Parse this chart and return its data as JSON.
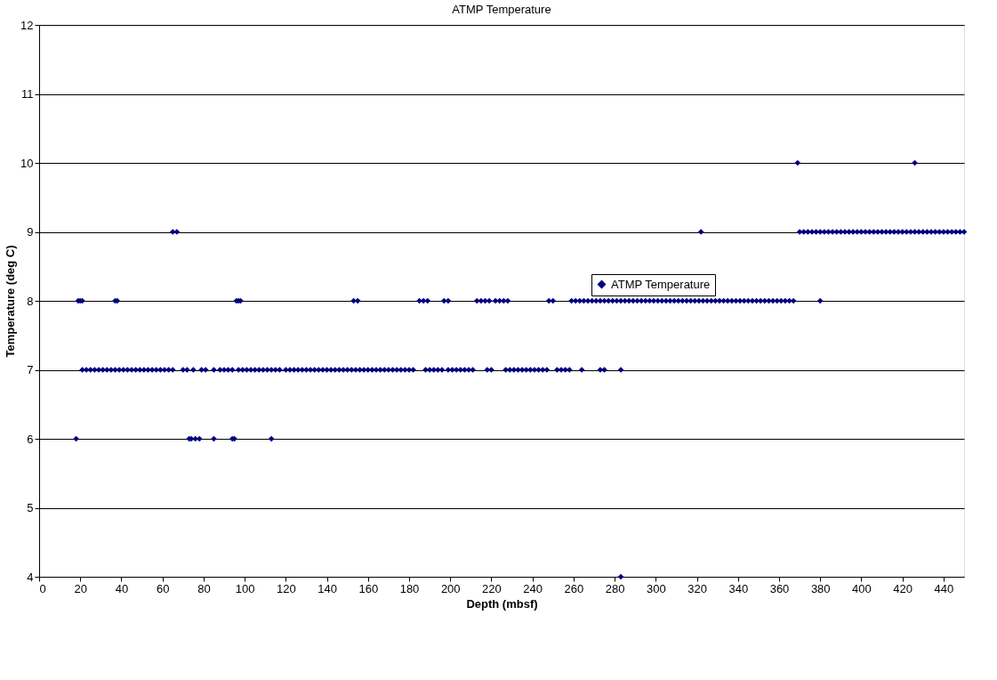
{
  "chart_data": {
    "type": "scatter",
    "title": "ATMP Temperature",
    "xlabel": "Depth (mbsf)",
    "ylabel": "Temperature (deg C)",
    "xlim": [
      0,
      450
    ],
    "xticks": [
      0,
      20,
      40,
      60,
      80,
      100,
      120,
      140,
      160,
      180,
      200,
      220,
      240,
      260,
      280,
      300,
      320,
      340,
      360,
      380,
      400,
      420,
      440
    ],
    "ylim": [
      4,
      12
    ],
    "yticks": [
      4,
      5,
      6,
      7,
      8,
      9,
      10,
      11,
      12
    ],
    "grid": "y",
    "legend": "top right",
    "marker": "diamond",
    "series": [
      {
        "name": "ATMP Temperature",
        "color": "#000080",
        "x": [
          18,
          73,
          74,
          76,
          78,
          85,
          94,
          95,
          113,
          283,
          21,
          23,
          25,
          27,
          29,
          31,
          33,
          35,
          37,
          39,
          41,
          43,
          45,
          47,
          49,
          51,
          53,
          55,
          57,
          59,
          61,
          63,
          65,
          70,
          72,
          75,
          79,
          81,
          85,
          88,
          90,
          92,
          94,
          97,
          99,
          101,
          103,
          105,
          107,
          109,
          111,
          113,
          115,
          117,
          120,
          122,
          124,
          126,
          128,
          130,
          132,
          134,
          136,
          138,
          140,
          142,
          144,
          146,
          148,
          150,
          152,
          154,
          156,
          158,
          160,
          162,
          164,
          166,
          168,
          170,
          172,
          174,
          176,
          178,
          180,
          182,
          188,
          190,
          192,
          194,
          196,
          199,
          201,
          203,
          205,
          207,
          209,
          211,
          218,
          220,
          227,
          229,
          231,
          233,
          235,
          237,
          239,
          241,
          243,
          245,
          247,
          252,
          254,
          256,
          258,
          264,
          273,
          275,
          283,
          19,
          20,
          21,
          37,
          38,
          96,
          97,
          98,
          153,
          155,
          185,
          187,
          189,
          197,
          199,
          213,
          215,
          217,
          219,
          222,
          224,
          226,
          228,
          248,
          250,
          259,
          261,
          263,
          265,
          267,
          269,
          271,
          273,
          275,
          277,
          279,
          281,
          283,
          285,
          287,
          289,
          291,
          293,
          295,
          297,
          299,
          301,
          303,
          305,
          307,
          309,
          311,
          313,
          315,
          317,
          319,
          321,
          323,
          325,
          327,
          329,
          331,
          333,
          335,
          337,
          339,
          341,
          343,
          345,
          347,
          349,
          351,
          353,
          355,
          357,
          359,
          361,
          363,
          365,
          367,
          380,
          65,
          67,
          322,
          370,
          372,
          374,
          376,
          378,
          380,
          382,
          384,
          386,
          388,
          390,
          392,
          394,
          396,
          398,
          400,
          402,
          404,
          406,
          408,
          410,
          412,
          414,
          416,
          418,
          420,
          422,
          424,
          426,
          428,
          430,
          432,
          434,
          436,
          438,
          440,
          442,
          444,
          446,
          448,
          450,
          369,
          426
        ],
        "values": [
          6,
          6,
          6,
          6,
          6,
          6,
          6,
          6,
          6,
          4,
          7,
          7,
          7,
          7,
          7,
          7,
          7,
          7,
          7,
          7,
          7,
          7,
          7,
          7,
          7,
          7,
          7,
          7,
          7,
          7,
          7,
          7,
          7,
          7,
          7,
          7,
          7,
          7,
          7,
          7,
          7,
          7,
          7,
          7,
          7,
          7,
          7,
          7,
          7,
          7,
          7,
          7,
          7,
          7,
          7,
          7,
          7,
          7,
          7,
          7,
          7,
          7,
          7,
          7,
          7,
          7,
          7,
          7,
          7,
          7,
          7,
          7,
          7,
          7,
          7,
          7,
          7,
          7,
          7,
          7,
          7,
          7,
          7,
          7,
          7,
          7,
          7,
          7,
          7,
          7,
          7,
          7,
          7,
          7,
          7,
          7,
          7,
          7,
          7,
          7,
          7,
          7,
          7,
          7,
          7,
          7,
          7,
          7,
          7,
          7,
          7,
          7,
          7,
          7,
          7,
          7,
          7,
          7,
          7,
          8,
          8,
          8,
          8,
          8,
          8,
          8,
          8,
          8,
          8,
          8,
          8,
          8,
          8,
          8,
          8,
          8,
          8,
          8,
          8,
          8,
          8,
          8,
          8,
          8,
          8,
          8,
          8,
          8,
          8,
          8,
          8,
          8,
          8,
          8,
          8,
          8,
          8,
          8,
          8,
          8,
          8,
          8,
          8,
          8,
          8,
          8,
          8,
          8,
          8,
          8,
          8,
          8,
          8,
          8,
          8,
          8,
          8,
          8,
          8,
          8,
          8,
          8,
          8,
          8,
          8,
          8,
          8,
          8,
          8,
          8,
          8,
          8,
          8,
          8,
          8,
          8,
          8,
          8,
          8,
          8,
          9,
          9,
          9,
          9,
          9,
          9,
          9,
          9,
          9,
          9,
          9,
          9,
          9,
          9,
          9,
          9,
          9,
          9,
          9,
          9,
          9,
          9,
          9,
          9,
          9,
          9,
          9,
          9,
          9,
          9,
          9,
          9,
          9,
          9,
          9,
          9,
          9,
          9,
          9,
          9,
          9,
          9,
          9,
          9,
          10,
          10
        ]
      }
    ]
  }
}
